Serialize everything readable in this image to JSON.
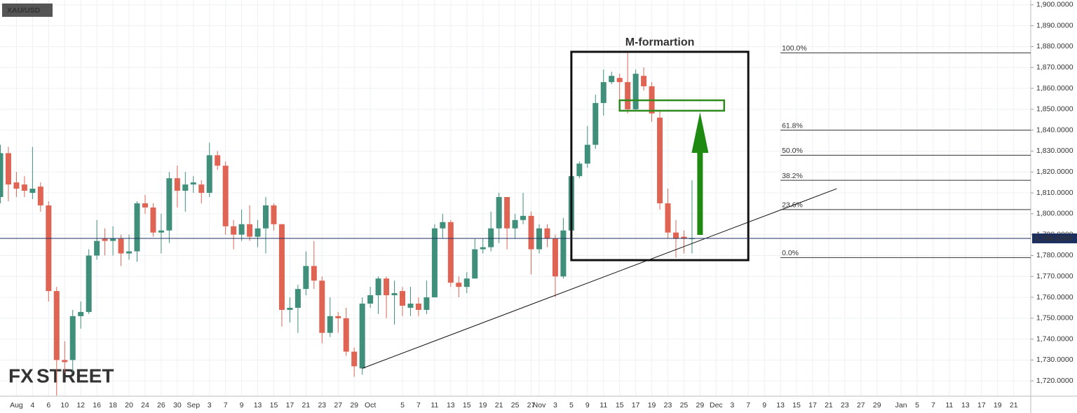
{
  "chart_data": {
    "type": "candlestick",
    "symbol": "XAU/USD",
    "watermark": [
      "FX",
      "STREET"
    ],
    "categories": [
      null,
      null,
      "Aug",
      null,
      "4",
      null,
      "6",
      null,
      "10",
      null,
      "12",
      null,
      "16",
      null,
      "18",
      null,
      "20",
      null,
      "24",
      null,
      "26",
      null,
      "30",
      null,
      "Sep",
      null,
      "3",
      null,
      "7",
      null,
      "9",
      null,
      "13",
      null,
      "15",
      null,
      "17",
      null,
      "21",
      null,
      "23",
      null,
      "27",
      null,
      "29",
      null,
      "Oct",
      null,
      null,
      null,
      "5",
      null,
      "7",
      null,
      "11",
      null,
      "13",
      null,
      "15",
      null,
      "19",
      null,
      "21",
      null,
      "25",
      null,
      "27",
      "Nov",
      null,
      "3",
      null,
      "5",
      null,
      "9",
      null,
      "11",
      null,
      "15",
      null,
      "17",
      null,
      "19",
      null,
      "23",
      null,
      "25",
      null,
      "29",
      null,
      "Dec",
      null,
      "3",
      null,
      "7",
      null,
      "9",
      null,
      "13",
      null,
      "15",
      null,
      "17",
      null,
      "21",
      null,
      "23",
      null,
      "27",
      null,
      "29",
      null,
      null,
      "Jan",
      null,
      "5",
      null,
      "7",
      null,
      "11",
      null,
      "13",
      null,
      "17",
      null,
      "19",
      null,
      "21"
    ],
    "open": [
      1808,
      1829,
      1815,
      1814,
      1810,
      1813,
      1804,
      1763,
      1730,
      1730,
      1751,
      1753,
      1780,
      1788,
      1787,
      1788,
      1781,
      1782,
      1805,
      1803,
      1791,
      1792,
      1817,
      1811,
      1814,
      1814,
      1810,
      1828,
      1823,
      1794,
      1790,
      1795,
      1789,
      1793,
      1804,
      1795,
      1754,
      1755,
      1764,
      1775,
      1768,
      1743,
      1751,
      1750,
      1734,
      1726,
      1757,
      1761,
      1769,
      1761,
      1763,
      1755,
      1757,
      1754,
      1760,
      1793,
      1796,
      1767,
      1765,
      1769,
      1783,
      1784,
      1793,
      1808,
      1793,
      1797,
      1799,
      1783,
      1793,
      1788,
      1770,
      1792,
      1818,
      1824,
      1833,
      1853,
      1863,
      1865,
      1863,
      1850,
      1866,
      1861,
      1846,
      1805,
      1791,
      1789,
      1788,
      null,
      null,
      null,
      null,
      null,
      null,
      null,
      null,
      null,
      null,
      null,
      null,
      null,
      null,
      null,
      null,
      null,
      null,
      null,
      null,
      null,
      null,
      null,
      null,
      null,
      null,
      null,
      null,
      null,
      null,
      null,
      null,
      null,
      null,
      null,
      null,
      null,
      null,
      null,
      null
    ],
    "high": [
      1833,
      1832,
      1820,
      1818,
      1832,
      1815,
      1806,
      1765,
      1739,
      1754,
      1758,
      1783,
      1797,
      1793,
      1794,
      1790,
      1790,
      1806,
      1809,
      1805,
      1800,
      1820,
      1823,
      1820,
      1818,
      1816,
      1834,
      1830,
      1825,
      1797,
      1802,
      1804,
      1797,
      1808,
      1805,
      1795,
      1760,
      1766,
      1782,
      1787,
      1770,
      1760,
      1753,
      1755,
      1736,
      1760,
      1765,
      1770,
      1770,
      1768,
      1765,
      1765,
      1760,
      1768,
      1795,
      1800,
      1797,
      1770,
      1772,
      1788,
      1788,
      1801,
      1810,
      1808,
      1800,
      1810,
      1801,
      1795,
      1795,
      1790,
      1798,
      1819,
      1825,
      1842,
      1857,
      1869,
      1868,
      1867,
      1877,
      1869,
      1870,
      1863,
      1849,
      1812,
      1797,
      1792,
      1816,
      null,
      null,
      null,
      null,
      null,
      null,
      null,
      null,
      null,
      null,
      null,
      null,
      null,
      null,
      null,
      null,
      null,
      null,
      null,
      null,
      null,
      null,
      null,
      null,
      null,
      null,
      null,
      null,
      null,
      null,
      null,
      null,
      null,
      null,
      null,
      null,
      null,
      null,
      null,
      null
    ],
    "low": [
      1805,
      1806,
      1808,
      1808,
      1807,
      1801,
      1758,
      1713,
      1724,
      1724,
      1745,
      1752,
      1778,
      1780,
      1780,
      1775,
      1778,
      1777,
      1800,
      1789,
      1781,
      1786,
      1803,
      1801,
      1810,
      1805,
      1808,
      1821,
      1790,
      1783,
      1787,
      1787,
      1784,
      1781,
      1792,
      1746,
      1748,
      1743,
      1761,
      1764,
      1738,
      1741,
      1743,
      1732,
      1722,
      1723,
      1755,
      1752,
      1750,
      1747,
      1751,
      1751,
      1751,
      1752,
      1760,
      1788,
      1765,
      1760,
      1762,
      1769,
      1781,
      1782,
      1786,
      1783,
      1788,
      1795,
      1771,
      1781,
      1784,
      1760,
      1769,
      1792,
      1817,
      1822,
      1831,
      1847,
      1862,
      1852,
      1848,
      1849,
      1859,
      1844,
      1802,
      1788,
      1779,
      1781,
      1781,
      null,
      null,
      null,
      null,
      null,
      null,
      null,
      null,
      null,
      null,
      null,
      null,
      null,
      null,
      null,
      null,
      null,
      null,
      null,
      null,
      null,
      null,
      null,
      null,
      null,
      null,
      null,
      null,
      null,
      null,
      null,
      null,
      null,
      null,
      null,
      null,
      null,
      null,
      null,
      null
    ],
    "close": [
      1829,
      1814,
      1812,
      1811,
      1812,
      1804,
      1763,
      1730,
      1729,
      1751,
      1753,
      1780,
      1787,
      1787,
      1788,
      1781,
      1782,
      1805,
      1803,
      1791,
      1792,
      1817,
      1811,
      1814,
      1815,
      1810,
      1828,
      1823,
      1794,
      1790,
      1795,
      1789,
      1793,
      1804,
      1795,
      1754,
      1755,
      1764,
      1775,
      1768,
      1743,
      1751,
      1750,
      1734,
      1727,
      1757,
      1761,
      1769,
      1761,
      1762,
      1756,
      1757,
      1754,
      1760,
      1793,
      1796,
      1767,
      1765,
      1769,
      1783,
      1784,
      1793,
      1808,
      1793,
      1797,
      1799,
      1783,
      1793,
      1788,
      1770,
      1792,
      1818,
      1824,
      1833,
      1853,
      1863,
      1866,
      1863,
      1850,
      1867,
      1861,
      1848,
      1805,
      1791,
      1788,
      1788,
      1788.21,
      null,
      null,
      null,
      null,
      null,
      null,
      null,
      null,
      null,
      null,
      null,
      null,
      null,
      null,
      null,
      null,
      null,
      null,
      null,
      null,
      null,
      null,
      null,
      null,
      null,
      null,
      null,
      null,
      null,
      null,
      null,
      null,
      null,
      null,
      null,
      null,
      null,
      null,
      null,
      null
    ],
    "up_color": "#3f8f7b",
    "down_color": "#e06453",
    "ylim": [
      1712.7,
      1902.3
    ],
    "yticks": [
      {
        "value": 1720,
        "label": "1,720.0000"
      },
      {
        "value": 1730,
        "label": "1,730.0000"
      },
      {
        "value": 1740,
        "label": "1,740.0000"
      },
      {
        "value": 1750,
        "label": "1,750.0000"
      },
      {
        "value": 1760,
        "label": "1,760.0000"
      },
      {
        "value": 1770,
        "label": "1,770.0000"
      },
      {
        "value": 1780,
        "label": "1,780.0000"
      },
      {
        "value": 1790,
        "label": "1,790.0000"
      },
      {
        "value": 1800,
        "label": "1,800.0000"
      },
      {
        "value": 1810,
        "label": "1,810.0000"
      },
      {
        "value": 1820,
        "label": "1,820.0000"
      },
      {
        "value": 1830,
        "label": "1,830.0000"
      },
      {
        "value": 1840,
        "label": "1,840.0000"
      },
      {
        "value": 1850,
        "label": "1,850.0000"
      },
      {
        "value": 1860,
        "label": "1,860.0000"
      },
      {
        "value": 1870,
        "label": "1,870.0000"
      },
      {
        "value": 1880,
        "label": "1,880.0000"
      },
      {
        "value": 1890,
        "label": "1,890.0000"
      },
      {
        "value": 1900,
        "label": "1,900.0000"
      }
    ],
    "grid": true,
    "current_price": {
      "value": 1788.21,
      "label": "1,788.2100"
    },
    "box": {
      "label": "M-formartion",
      "x": [
        71,
        93
      ],
      "y": [
        1777.8,
        1877.5
      ]
    },
    "resistance_zone": {
      "x": [
        77,
        90
      ],
      "y": [
        1849.3,
        1854.3
      ],
      "color": "#2e8b1e"
    },
    "arrow": {
      "x": 87,
      "y": [
        1789.9,
        1848.6
      ],
      "color": "#1e8a12"
    },
    "trendline": {
      "x": [
        45,
        104
      ],
      "y": [
        1726,
        1812
      ]
    },
    "fib_levels": {
      "x_start": 97,
      "levels": [
        {
          "level": "100.0%",
          "price": 1877
        },
        {
          "level": "61.8%",
          "price": 1840
        },
        {
          "level": "50.0%",
          "price": 1828
        },
        {
          "level": "38.2%",
          "price": 1816
        },
        {
          "level": "23.6%",
          "price": 1802
        },
        {
          "level": "0.0%",
          "price": 1779
        }
      ]
    }
  }
}
